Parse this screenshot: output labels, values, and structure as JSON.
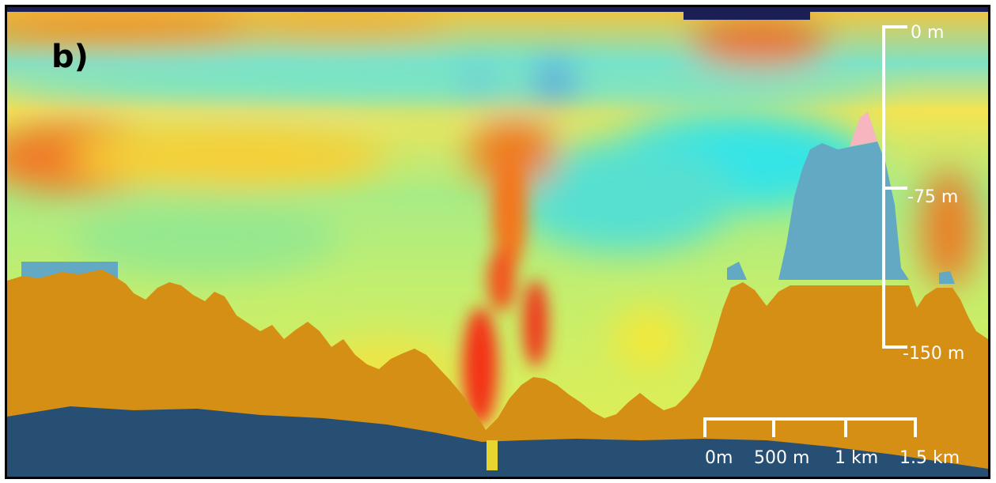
{
  "panel": {
    "label": "b)"
  },
  "depth_scale": {
    "ticks": [
      "0 m",
      "-75 m",
      "-150 m"
    ]
  },
  "horizontal_scale": {
    "ticks": [
      "0m",
      "500 m",
      "1 km",
      "1.5 km"
    ]
  },
  "colors": {
    "sediment_fill": "#D48F14",
    "basement": "#274F73",
    "blue_gray_block": "#63A9C4",
    "pink_patch": "#F7B5C0",
    "surface_band": "#1C1F55",
    "scale_lines": "#FFFFFF",
    "background_teal": "#7BE3C8"
  }
}
